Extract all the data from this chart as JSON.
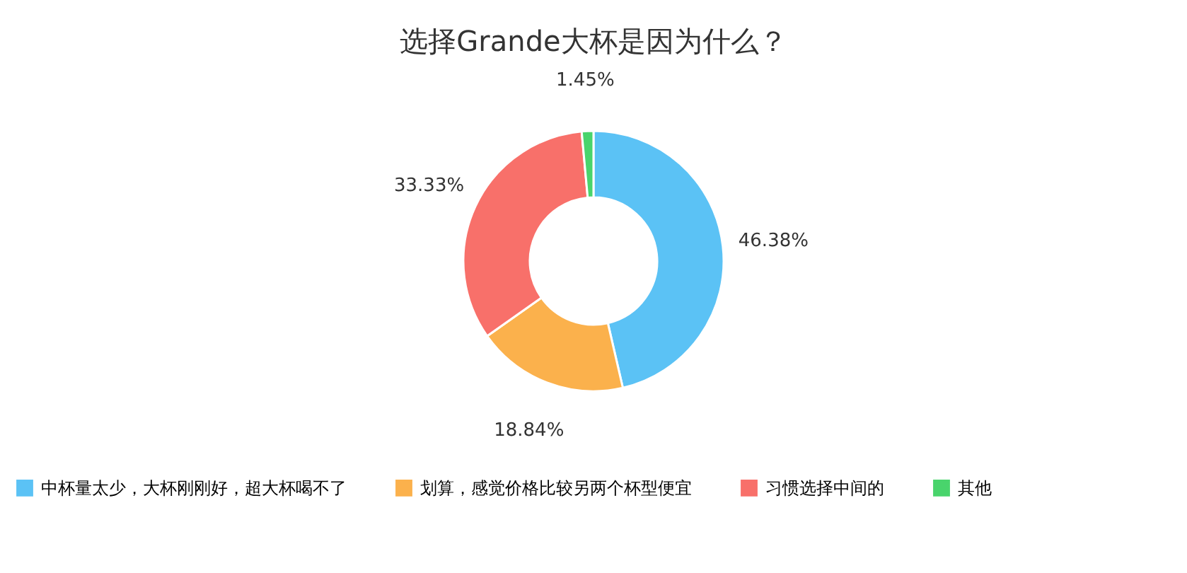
{
  "chart_data": {
    "type": "donut",
    "title": "选择Grande大杯是因为什么？",
    "categories": [
      "中杯量太少，大杯刚刚好，超大杯喝不了",
      "划算，感觉价格比较另两个杯型便宜",
      "习惯选择中间的",
      "其他"
    ],
    "values": [
      46.38,
      18.84,
      33.33,
      1.45
    ],
    "colors": [
      "#5bc2f5",
      "#fbb14c",
      "#f8706a",
      "#49d46c"
    ],
    "value_labels": [
      "46.38%",
      "18.84%",
      "33.33%",
      "1.45%"
    ],
    "legend": "bottom"
  }
}
